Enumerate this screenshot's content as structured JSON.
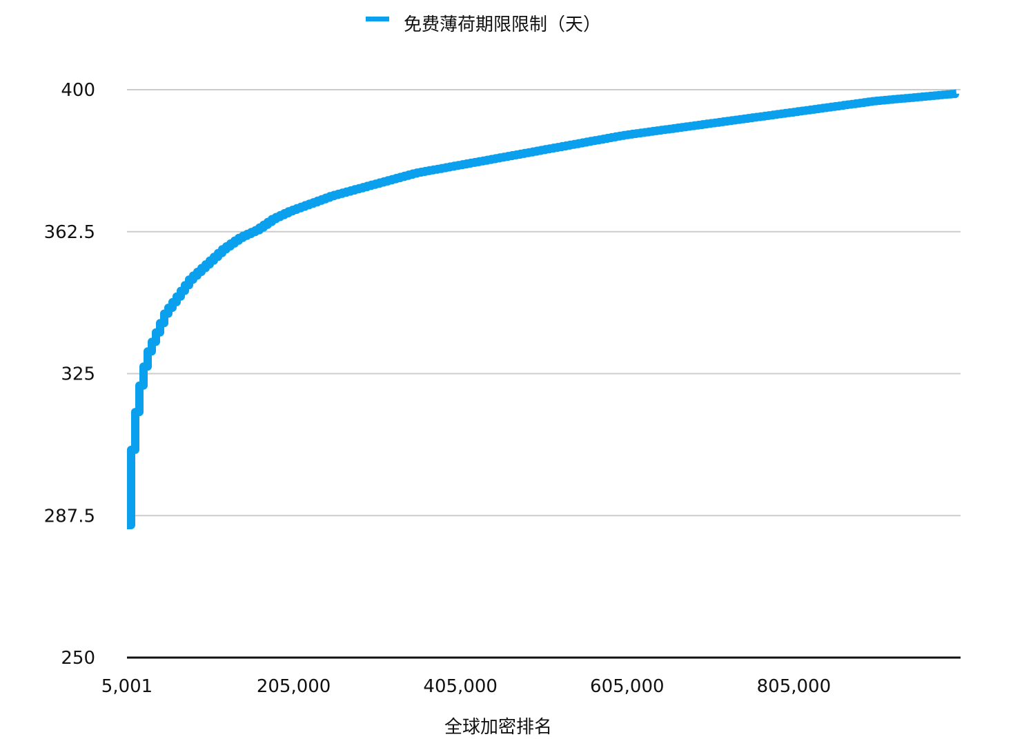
{
  "chart_data": {
    "type": "line",
    "title": "",
    "xlabel": "全球加密排名",
    "ylabel": "",
    "legend_position": "top-center",
    "grid": true,
    "color": "#0aa0ee",
    "xlim": [
      5001,
      1005001
    ],
    "ylim": [
      250,
      400
    ],
    "x_ticks": [
      5001,
      205000,
      405000,
      605000,
      805000
    ],
    "x_tick_labels": [
      "5,001",
      "205,000",
      "405,000",
      "605,000",
      "805,000"
    ],
    "y_ticks": [
      250,
      287.5,
      325,
      362.5,
      400
    ],
    "y_tick_labels": [
      "250",
      "287.5",
      "325",
      "362.5",
      "400"
    ],
    "series": [
      {
        "name": "免费薄荷期限限制（天）",
        "x": [
          5001,
          10000,
          15000,
          20000,
          25000,
          30000,
          40000,
          50000,
          60000,
          70000,
          80000,
          100000,
          120000,
          140000,
          160000,
          180000,
          200000,
          250000,
          300000,
          350000,
          400000,
          450000,
          500000,
          550000,
          600000,
          650000,
          700000,
          750000,
          800000,
          850000,
          900000,
          950000,
          1000000
        ],
        "y": [
          285,
          305,
          315,
          322,
          327,
          331,
          336,
          341,
          344,
          347,
          350,
          354,
          358,
          361,
          363,
          366,
          368,
          372,
          375,
          378,
          380,
          382,
          384,
          386,
          388,
          389.5,
          391,
          392.5,
          394,
          395.5,
          397,
          398,
          399
        ]
      }
    ]
  }
}
